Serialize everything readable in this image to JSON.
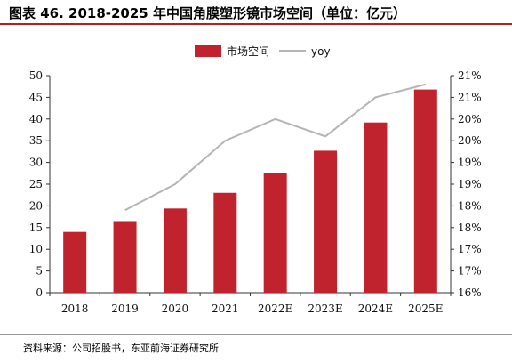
{
  "title": "图表 46. 2018-2025 年中国角膜塑形镜市场空间（单位：亿元）",
  "source": "资料来源：公司招股书，东亚前海证券研究所",
  "colors": {
    "bar": "#c0232e",
    "line": "#b5b5b5",
    "accent": "#b0202a"
  },
  "chart_data": {
    "type": "bar",
    "categories": [
      "2018",
      "2019",
      "2020",
      "2021",
      "2022E",
      "2023E",
      "2024E",
      "2025E"
    ],
    "series": [
      {
        "name": "市场空间",
        "type": "bar",
        "axis": "left",
        "values": [
          14.0,
          16.5,
          19.4,
          23.0,
          27.5,
          32.7,
          39.2,
          46.8
        ]
      },
      {
        "name": "yoy",
        "type": "line",
        "axis": "right",
        "values": [
          null,
          17.9,
          18.5,
          19.5,
          20.0,
          19.6,
          20.5,
          20.8
        ]
      }
    ],
    "left_axis": {
      "ylim": [
        0,
        50
      ],
      "ticks": [
        "0",
        "5",
        "10",
        "15",
        "20",
        "25",
        "30",
        "35",
        "40",
        "45",
        "50"
      ]
    },
    "right_axis": {
      "ylim": [
        16,
        21
      ],
      "ticks": [
        "16%",
        "17%",
        "17%",
        "18%",
        "18%",
        "19%",
        "19%",
        "20%",
        "20%",
        "21%",
        "21%"
      ]
    },
    "legend": {
      "position": "top-center"
    },
    "grid": false
  }
}
